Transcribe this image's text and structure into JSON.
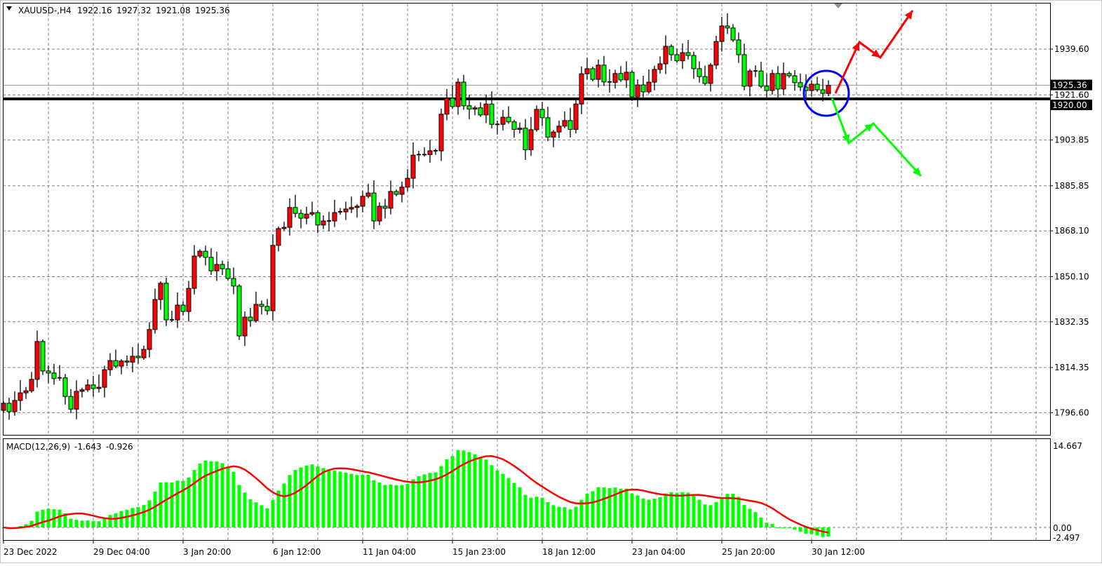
{
  "header": {
    "symbol": "XAUUSD-,H4",
    "open": "1922.16",
    "high": "1927.32",
    "low": "1921.08",
    "close": "1925.36"
  },
  "colors": {
    "bull_candle": "#ff0000",
    "bear_candle": "#00ff00",
    "support_line": "#000000",
    "circle": "#0000ff",
    "bull_arrow": "#ff0000",
    "bear_arrow": "#00ff00",
    "macd_histogram": "#00ff00",
    "macd_signal": "#ff0000"
  },
  "chart_data": [
    {
      "type": "candlestick",
      "timeframe": "H4",
      "price_ticks": [
        "1939.60",
        "1921.60",
        "1903.85",
        "1885.85",
        "1868.10",
        "1850.10",
        "1832.35",
        "1814.35",
        "1796.60"
      ],
      "ylim": [
        1793,
        1957
      ],
      "time_labels": [
        "23 Dec 2022",
        "29 Dec 04:00",
        "3 Jan 20:00",
        "6 Jan 12:00",
        "11 Jan 04:00",
        "15 Jan 23:00",
        "18 Jan 12:00",
        "23 Jan 04:00",
        "25 Jan 20:00",
        "30 Jan 12:00"
      ],
      "first_open": 1797.5,
      "close": [
        1800.3,
        1797,
        1801.4,
        1804.4,
        1805.2,
        1809.7,
        1824.6,
        1813,
        1812.2,
        1810,
        1810.3,
        1803,
        1798,
        1805,
        1805.6,
        1807.5,
        1806.1,
        1806.6,
        1813.5,
        1817.1,
        1814.9,
        1816.9,
        1816.5,
        1818.8,
        1818.2,
        1821.5,
        1829.3,
        1841.1,
        1847.5,
        1833.1,
        1833.1,
        1838.9,
        1836.4,
        1845.5,
        1858.2,
        1860.1,
        1857.7,
        1852.4,
        1854.9,
        1853.2,
        1849.4,
        1846.4,
        1826.8,
        1834.2,
        1832.8,
        1839.2,
        1838.4,
        1836.7,
        1862.4,
        1869,
        1869.5,
        1877.3,
        1875,
        1873.1,
        1874.7,
        1875.3,
        1870.4,
        1872,
        1872,
        1875.3,
        1875.6,
        1876.7,
        1877.3,
        1877.8,
        1881.7,
        1883,
        1872,
        1877.8,
        1877,
        1883.6,
        1882.5,
        1885.3,
        1888.8,
        1897.9,
        1898.1,
        1898.1,
        1899.6,
        1899.6,
        1914,
        1920.3,
        1917,
        1926.6,
        1917.3,
        1916,
        1916.5,
        1913.7,
        1918,
        1910,
        1910,
        1912.8,
        1911,
        1908,
        1908.5,
        1900,
        1907.9,
        1915.9,
        1912.6,
        1905,
        1907,
        1909.3,
        1911.5,
        1908,
        1918,
        1929.9,
        1931.9,
        1927.7,
        1933.3,
        1926.7,
        1926.5,
        1930,
        1927.5,
        1930.5,
        1920.8,
        1925.5,
        1922.8,
        1926.6,
        1931.6,
        1933.8,
        1940.7,
        1937.4,
        1935,
        1938.2,
        1937.1,
        1931.9,
        1928.8,
        1926.1,
        1933.3,
        1942.6,
        1948.7,
        1947.9,
        1943.2,
        1937.4,
        1925,
        1931,
        1931,
        1925,
        1923.3,
        1930,
        1923.9,
        1930,
        1929.1,
        1926.4,
        1924.7,
        1923.3,
        1925.8,
        1923.6,
        1922.2,
        1925.36
      ],
      "horizontal_line": "1920.00",
      "bid_line": "1925.36",
      "hidden_label": "1921.60"
    },
    {
      "type": "macd",
      "label": "MACD(12,26,9)",
      "main_value": "-1.643",
      "signal_value": "-0.926",
      "axis_labels": [
        "14.667",
        "0.00",
        "-2.497"
      ],
      "ylim": [
        -2.497,
        14.667
      ],
      "params": [
        12,
        26,
        9
      ]
    }
  ]
}
